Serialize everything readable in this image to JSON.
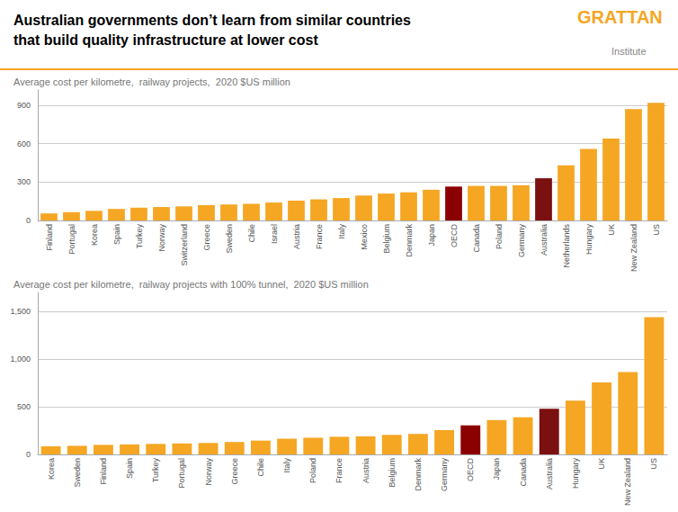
{
  "title": "Australian governments don’t learn from similar countries\nthat build quality infrastructure at lower cost",
  "annotations": [
    {
      "text": "GRATTAN",
      "color": "#F5A623"
    },
    {
      "text": "Institute"
    }
  ],
  "chart_data": [
    {
      "type": "bar",
      "subtitle": "Average cost per kilometre,  railway projects,  2020 $US million",
      "categories": [
        "Finland",
        "Portugal",
        "Korea",
        "Spain",
        "Turkey",
        "Norway",
        "Switzerland",
        "Greece",
        "Sweden",
        "Chile",
        "Israel",
        "Austria",
        "France",
        "Italy",
        "Mexico",
        "Belgium",
        "Denmark",
        "Japan",
        "OECD",
        "Canada",
        "Poland",
        "Germany",
        "Australia",
        "Netherlands",
        "Hungary",
        "UK",
        "New Zealand",
        "US"
      ],
      "values": [
        55,
        65,
        75,
        90,
        100,
        105,
        110,
        120,
        125,
        130,
        140,
        155,
        165,
        175,
        195,
        210,
        220,
        240,
        265,
        270,
        270,
        275,
        330,
        430,
        560,
        640,
        870,
        920
      ],
      "colors": [
        "#F5A623",
        "#F5A623",
        "#F5A623",
        "#F5A623",
        "#F5A623",
        "#F5A623",
        "#F5A623",
        "#F5A623",
        "#F5A623",
        "#F5A623",
        "#F5A623",
        "#F5A623",
        "#F5A623",
        "#F5A623",
        "#F5A623",
        "#F5A623",
        "#F5A623",
        "#F5A623",
        "#8B0000",
        "#F5A623",
        "#F5A623",
        "#F5A623",
        "#7B1010",
        "#F5A623",
        "#F5A623",
        "#F5A623",
        "#F5A623",
        "#F5A623"
      ],
      "ylim": [
        0,
        1020
      ],
      "yticks": [
        0,
        300,
        600,
        900
      ],
      "grid": true
    },
    {
      "type": "bar",
      "subtitle": "Average cost per kilometre,  railway projects with 100% tunnel,  2020 $US million",
      "categories": [
        "Korea",
        "Sweden",
        "Finland",
        "Spain",
        "Turkey",
        "Portugal",
        "Norway",
        "Greece",
        "Chile",
        "Italy",
        "Poland",
        "France",
        "Austria",
        "Belgium",
        "Denmark",
        "Germany",
        "OECD",
        "Japan",
        "Canada",
        "Australia",
        "Hungary",
        "UK",
        "New Zealand",
        "US"
      ],
      "values": [
        85,
        90,
        100,
        105,
        110,
        115,
        120,
        130,
        145,
        165,
        175,
        185,
        190,
        205,
        215,
        255,
        305,
        360,
        390,
        480,
        565,
        755,
        865,
        1440
      ],
      "colors": [
        "#F5A623",
        "#F5A623",
        "#F5A623",
        "#F5A623",
        "#F5A623",
        "#F5A623",
        "#F5A623",
        "#F5A623",
        "#F5A623",
        "#F5A623",
        "#F5A623",
        "#F5A623",
        "#F5A623",
        "#F5A623",
        "#F5A623",
        "#F5A623",
        "#8B0000",
        "#F5A623",
        "#F5A623",
        "#7B1010",
        "#F5A623",
        "#F5A623",
        "#F5A623",
        "#F5A623"
      ],
      "ylim": [
        0,
        1700
      ],
      "yticks": [
        0,
        500,
        {
          "value": 1000,
          "label": "1,000"
        },
        {
          "value": 1500,
          "label": "1,500"
        }
      ],
      "grid": true
    }
  ]
}
